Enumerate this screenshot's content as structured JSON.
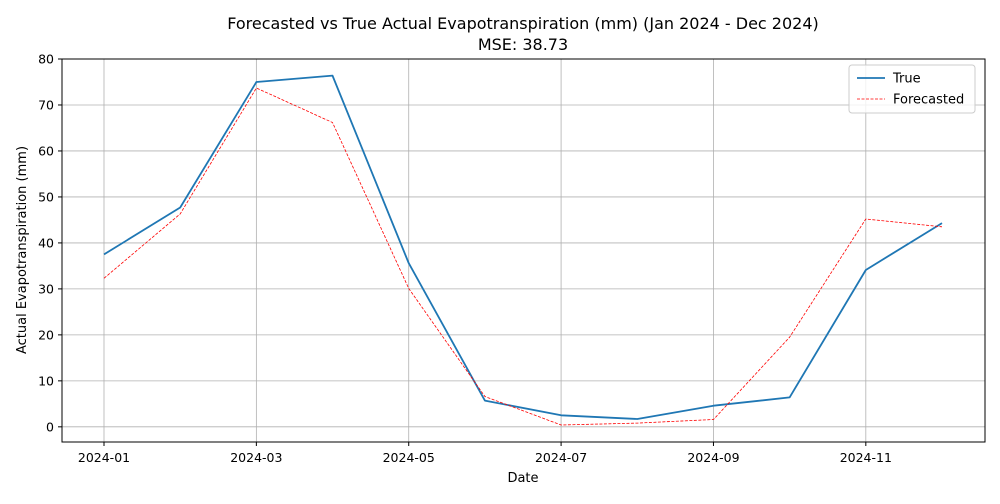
{
  "chart_data": {
    "type": "line",
    "title": "Forecasted vs True Actual Evapotranspiration (mm) (Jan 2024 - Dec 2024)",
    "subtitle": "MSE: 38.73",
    "xlabel": "Date",
    "ylabel": "Actual Evapotranspiration (mm)",
    "x": [
      "2024-01",
      "2024-02",
      "2024-03",
      "2024-04",
      "2024-05",
      "2024-06",
      "2024-07",
      "2024-08",
      "2024-09",
      "2024-10",
      "2024-11",
      "2024-12"
    ],
    "x_ticks": [
      "2024-01",
      "2024-03",
      "2024-05",
      "2024-07",
      "2024-09",
      "2024-11"
    ],
    "y_ticks": [
      0,
      10,
      20,
      30,
      40,
      50,
      60,
      70,
      80
    ],
    "ylim": [
      -3.3,
      80
    ],
    "grid": true,
    "legend_position": "top-right",
    "series": [
      {
        "name": "True",
        "color": "#1f77b4",
        "style": "solid",
        "values": [
          37.5,
          47.7,
          75.0,
          76.4,
          35.6,
          5.7,
          2.5,
          1.7,
          4.6,
          6.4,
          34.1,
          44.3
        ]
      },
      {
        "name": "Forecasted",
        "color": "#ff0000",
        "style": "dashed",
        "values": [
          32.3,
          46.3,
          73.7,
          66.2,
          30.1,
          6.6,
          0.4,
          0.8,
          1.6,
          19.5,
          45.2,
          43.5
        ]
      }
    ]
  }
}
